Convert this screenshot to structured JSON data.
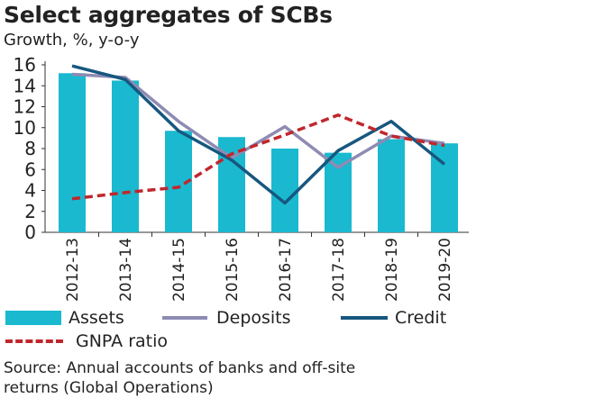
{
  "chart_data": {
    "type": "bar",
    "title": "Select aggregates of SCBs",
    "subtitle": "Growth, %, y-o-y",
    "categories": [
      "2012-13",
      "2013-14",
      "2014-15",
      "2015-16",
      "2016-17",
      "2017-18",
      "2018-19",
      "2019-20"
    ],
    "ylim": [
      0,
      16
    ],
    "yticks": [
      0,
      2,
      4,
      6,
      8,
      10,
      12,
      14,
      16
    ],
    "grid": false,
    "legend_position": "bottom",
    "series": [
      {
        "name": "Assets",
        "kind": "bar",
        "color": "#1ab9d0",
        "values": [
          15.2,
          14.5,
          9.7,
          9.1,
          8.0,
          7.6,
          8.9,
          8.5
        ]
      },
      {
        "name": "Deposits",
        "kind": "line",
        "color": "#8e8bb3",
        "values": [
          15.1,
          14.8,
          10.6,
          7.1,
          10.1,
          6.2,
          9.2,
          8.5
        ]
      },
      {
        "name": "Credit",
        "kind": "line",
        "color": "#17577f",
        "values": [
          15.9,
          14.6,
          9.7,
          6.9,
          2.8,
          7.8,
          10.6,
          6.5
        ]
      },
      {
        "name": "GNPA ratio",
        "kind": "dashed-line",
        "color": "#c0272d",
        "values": [
          3.2,
          3.8,
          4.3,
          7.5,
          9.3,
          11.2,
          9.2,
          8.3
        ]
      }
    ]
  },
  "source": [
    "Source: Annual accounts of banks and off-site",
    "returns (Global Operations)"
  ]
}
